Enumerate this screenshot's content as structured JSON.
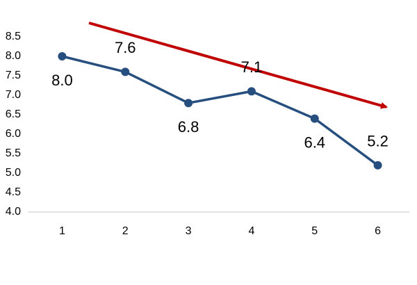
{
  "chart_data": {
    "type": "line",
    "categories": [
      "1",
      "2",
      "3",
      "4",
      "5",
      "6"
    ],
    "series": [
      {
        "color": "#264e7e",
        "values": [
          8.0,
          7.6,
          6.8,
          7.1,
          6.4,
          5.2
        ],
        "value_labels": [
          "8.0",
          "7.6",
          "6.8",
          "7.1",
          "6.4",
          "5.2"
        ]
      }
    ],
    "ylim": [
      4.0,
      8.5
    ],
    "yticks": [
      {
        "value": 4.0,
        "label": "4.0"
      },
      4.5,
      {
        "value": 5.0,
        "label": "5.0"
      },
      5.5,
      {
        "value": 6.0,
        "label": "6.0"
      },
      6.5,
      {
        "value": 7.0,
        "label": "7.0"
      },
      7.5,
      {
        "value": 8.0,
        "label": "8.0"
      },
      8.5
    ],
    "grid": false
  }
}
